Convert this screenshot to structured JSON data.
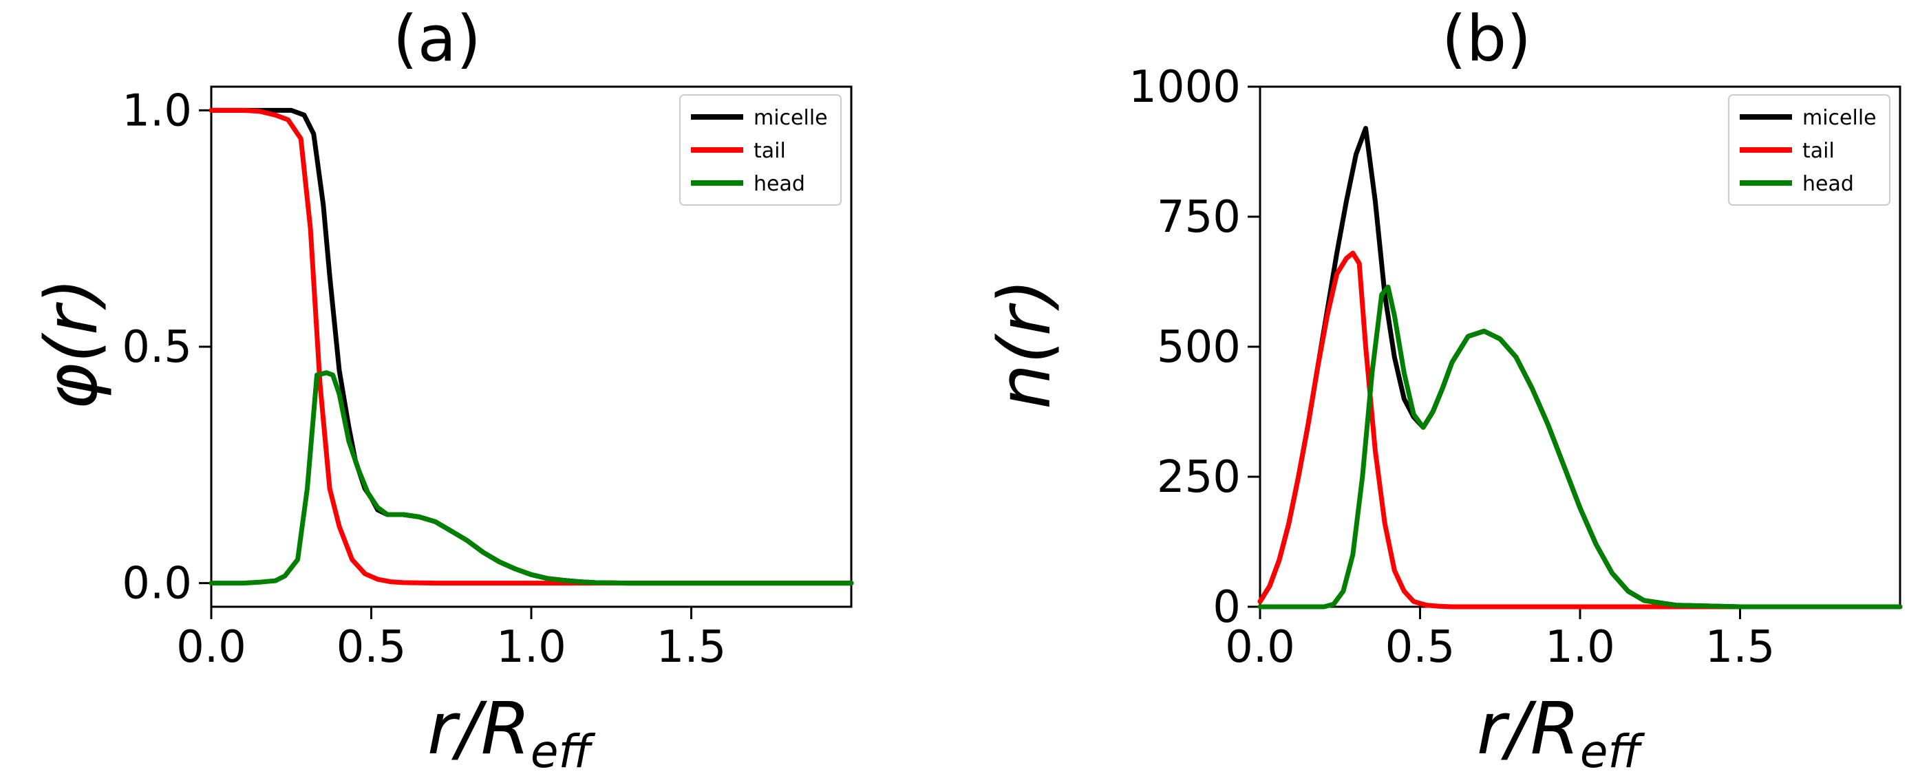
{
  "figure": {
    "panels": [
      {
        "title": "(a)",
        "xlabel_main": "r/R",
        "xlabel_sub": "eff",
        "ylabel": "φ(r)"
      },
      {
        "title": "(b)",
        "xlabel_main": "r/R",
        "xlabel_sub": "eff",
        "ylabel": "n(r)"
      }
    ]
  },
  "chart_data": [
    {
      "type": "line",
      "title": "(a)",
      "xlabel": "r/R_eff",
      "ylabel": "φ(r)",
      "xlim": [
        0,
        2.0
      ],
      "ylim": [
        -0.05,
        1.05
      ],
      "xticks": [
        0.0,
        0.5,
        1.0,
        1.5
      ],
      "xtick_labels": [
        "0.0",
        "0.5",
        "1.0",
        "1.5"
      ],
      "yticks": [
        0.0,
        0.5,
        1.0
      ],
      "ytick_labels": [
        "0.0",
        "0.5",
        "1.0"
      ],
      "grid": false,
      "legend_position": "top-right",
      "series": [
        {
          "name": "micelle",
          "color": "#000000",
          "x": [
            0.0,
            0.05,
            0.1,
            0.15,
            0.2,
            0.25,
            0.29,
            0.32,
            0.35,
            0.37,
            0.4,
            0.43,
            0.45,
            0.48,
            0.5,
            0.52,
            0.55,
            0.6,
            0.65,
            0.7,
            0.75,
            0.8,
            0.85,
            0.9,
            0.95,
            1.0,
            1.05,
            1.1,
            1.15,
            1.2,
            1.3,
            1.5,
            1.75,
            2.0
          ],
          "values": [
            1.0,
            1.0,
            1.0,
            1.0,
            1.0,
            1.0,
            0.99,
            0.95,
            0.8,
            0.65,
            0.45,
            0.33,
            0.26,
            0.2,
            0.18,
            0.155,
            0.145,
            0.145,
            0.14,
            0.13,
            0.11,
            0.09,
            0.065,
            0.045,
            0.03,
            0.018,
            0.01,
            0.006,
            0.003,
            0.001,
            0.0,
            0.0,
            0.0,
            0.0
          ]
        },
        {
          "name": "tail",
          "color": "#ff0000",
          "x": [
            0.0,
            0.05,
            0.1,
            0.15,
            0.2,
            0.24,
            0.28,
            0.31,
            0.34,
            0.37,
            0.4,
            0.44,
            0.48,
            0.52,
            0.56,
            0.6,
            0.7,
            0.8,
            1.0,
            1.25,
            1.5,
            2.0
          ],
          "values": [
            1.0,
            1.0,
            1.0,
            0.998,
            0.99,
            0.98,
            0.94,
            0.75,
            0.42,
            0.2,
            0.12,
            0.05,
            0.02,
            0.008,
            0.003,
            0.001,
            0.0,
            0.0,
            0.0,
            0.0,
            0.0,
            0.0
          ]
        },
        {
          "name": "head",
          "color": "#007f00",
          "x": [
            0.0,
            0.1,
            0.15,
            0.2,
            0.23,
            0.27,
            0.3,
            0.33,
            0.36,
            0.38,
            0.4,
            0.43,
            0.46,
            0.49,
            0.52,
            0.55,
            0.6,
            0.65,
            0.7,
            0.75,
            0.8,
            0.85,
            0.9,
            0.95,
            1.0,
            1.05,
            1.1,
            1.15,
            1.2,
            1.3,
            1.5,
            1.75,
            2.0
          ],
          "values": [
            0.0,
            0.0,
            0.002,
            0.005,
            0.015,
            0.05,
            0.2,
            0.44,
            0.445,
            0.44,
            0.4,
            0.3,
            0.24,
            0.19,
            0.16,
            0.145,
            0.145,
            0.14,
            0.13,
            0.11,
            0.09,
            0.065,
            0.045,
            0.03,
            0.018,
            0.01,
            0.006,
            0.003,
            0.001,
            0.0,
            0.0,
            0.0,
            0.0
          ]
        }
      ]
    },
    {
      "type": "line",
      "title": "(b)",
      "xlabel": "r/R_eff",
      "ylabel": "n(r)",
      "xlim": [
        0,
        2.0
      ],
      "ylim": [
        0,
        1000
      ],
      "xticks": [
        0.0,
        0.5,
        1.0,
        1.5
      ],
      "xtick_labels": [
        "0.0",
        "0.5",
        "1.0",
        "1.5"
      ],
      "yticks": [
        0,
        250,
        500,
        750,
        1000
      ],
      "ytick_labels": [
        "0",
        "250",
        "500",
        "750",
        "1000"
      ],
      "grid": false,
      "legend_position": "top-right",
      "series": [
        {
          "name": "micelle",
          "color": "#000000",
          "x": [
            0.0,
            0.03,
            0.06,
            0.09,
            0.12,
            0.15,
            0.18,
            0.21,
            0.24,
            0.27,
            0.3,
            0.33,
            0.36,
            0.39,
            0.42,
            0.45,
            0.48,
            0.51,
            0.54,
            0.57,
            0.6,
            0.65,
            0.7,
            0.75,
            0.8,
            0.85,
            0.9,
            0.95,
            1.0,
            1.05,
            1.1,
            1.15,
            1.2,
            1.3,
            1.5,
            1.75,
            2.0
          ],
          "values": [
            10,
            40,
            90,
            160,
            250,
            350,
            460,
            570,
            680,
            780,
            870,
            920,
            780,
            600,
            480,
            400,
            365,
            345,
            375,
            420,
            470,
            520,
            530,
            515,
            480,
            420,
            350,
            270,
            190,
            120,
            65,
            30,
            12,
            3,
            0,
            0,
            0
          ]
        },
        {
          "name": "tail",
          "color": "#ff0000",
          "x": [
            0.0,
            0.03,
            0.06,
            0.09,
            0.12,
            0.15,
            0.18,
            0.21,
            0.24,
            0.27,
            0.29,
            0.31,
            0.33,
            0.36,
            0.39,
            0.42,
            0.45,
            0.48,
            0.52,
            0.56,
            0.6,
            0.7,
            0.8,
            1.0,
            1.25,
            1.5,
            2.0
          ],
          "values": [
            10,
            40,
            90,
            160,
            250,
            350,
            460,
            560,
            640,
            670,
            680,
            660,
            500,
            300,
            160,
            70,
            30,
            10,
            3,
            1,
            0,
            0,
            0,
            0,
            0,
            0,
            0
          ]
        },
        {
          "name": "head",
          "color": "#007f00",
          "x": [
            0.0,
            0.15,
            0.2,
            0.23,
            0.26,
            0.29,
            0.32,
            0.35,
            0.38,
            0.4,
            0.42,
            0.45,
            0.48,
            0.51,
            0.54,
            0.57,
            0.6,
            0.65,
            0.7,
            0.75,
            0.8,
            0.85,
            0.9,
            0.95,
            1.0,
            1.05,
            1.1,
            1.15,
            1.2,
            1.3,
            1.5,
            1.75,
            2.0
          ],
          "values": [
            0,
            0,
            0,
            5,
            30,
            100,
            250,
            450,
            600,
            615,
            560,
            450,
            370,
            345,
            375,
            420,
            470,
            520,
            530,
            515,
            480,
            420,
            350,
            270,
            190,
            120,
            65,
            30,
            12,
            3,
            0,
            0,
            0
          ]
        }
      ]
    }
  ]
}
